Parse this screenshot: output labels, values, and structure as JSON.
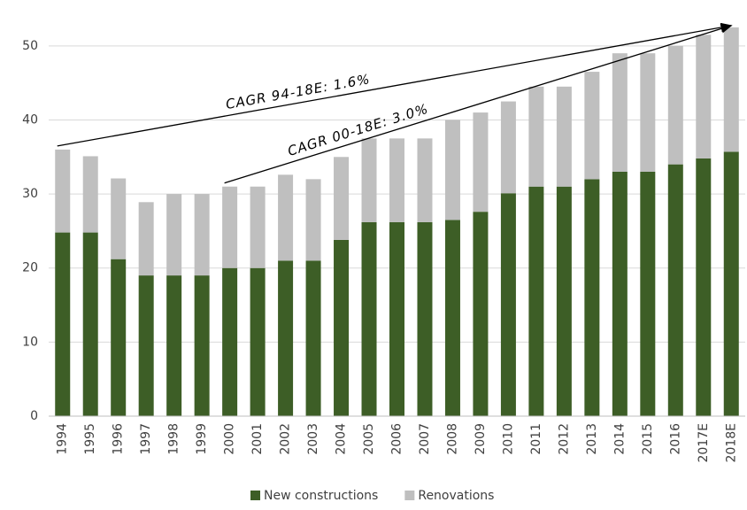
{
  "chart_data": {
    "type": "stacked_bar",
    "categories": [
      "1994",
      "1995",
      "1996",
      "1997",
      "1998",
      "1999",
      "2000",
      "2001",
      "2002",
      "2003",
      "2004",
      "2005",
      "2006",
      "2007",
      "2008",
      "2009",
      "2010",
      "2011",
      "2012",
      "2013",
      "2014",
      "2015",
      "2016",
      "2017E",
      "2018E"
    ],
    "series": [
      {
        "name": "New constructions",
        "color": "#3d5e26",
        "values": [
          24.8,
          24.8,
          21.2,
          19,
          19,
          19,
          20,
          20,
          21,
          21,
          23.8,
          26.2,
          26.2,
          26.2,
          26.5,
          27.6,
          30.1,
          31,
          31,
          32,
          33,
          33,
          34,
          34.8,
          35.7
        ]
      },
      {
        "name": "Renovations",
        "color": "#bfbfbf",
        "values": [
          11.2,
          10.3,
          10.9,
          9.9,
          11,
          11,
          11,
          11,
          11.6,
          11,
          11.2,
          11.3,
          11.3,
          11.3,
          13.5,
          13.4,
          12.4,
          13.5,
          13.5,
          14.5,
          16,
          16,
          16,
          16.7,
          16.8
        ]
      }
    ],
    "annotations": [
      "CAGR 94-18E: 1.6%",
      "CAGR 00-18E: 3.0%"
    ],
    "ylim": [
      0,
      55
    ],
    "yticks": [
      0,
      10,
      20,
      30,
      40,
      50
    ],
    "grid": true,
    "legend": "bottom"
  }
}
